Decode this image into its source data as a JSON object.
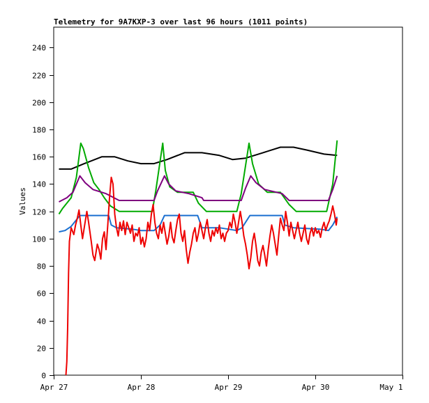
{
  "chart_data": {
    "type": "line",
    "title": "Telemetry for 9A7KXP-3 over last 96 hours (1011 points)",
    "xlabel": "",
    "ylabel": "Values",
    "x_unit": "days",
    "xlim": [
      0,
      4
    ],
    "ylim": [
      0,
      255
    ],
    "x_ticks": [
      {
        "x": 0,
        "label": "Apr 27"
      },
      {
        "x": 1,
        "label": "Apr 28"
      },
      {
        "x": 2,
        "label": "Apr 29"
      },
      {
        "x": 3,
        "label": "Apr 30"
      },
      {
        "x": 4,
        "label": "May 1"
      }
    ],
    "y_ticks": [
      0,
      20,
      40,
      60,
      80,
      100,
      120,
      140,
      160,
      180,
      200,
      220,
      240
    ],
    "grid": false,
    "legend": "none",
    "series": [
      {
        "color": "#000000",
        "points": [
          [
            0.06,
            151
          ],
          [
            0.2,
            151
          ],
          [
            0.35,
            155
          ],
          [
            0.55,
            160
          ],
          [
            0.7,
            160
          ],
          [
            0.85,
            157
          ],
          [
            1.0,
            155
          ],
          [
            1.15,
            155
          ],
          [
            1.3,
            158
          ],
          [
            1.5,
            163
          ],
          [
            1.7,
            163
          ],
          [
            1.9,
            161
          ],
          [
            2.05,
            158
          ],
          [
            2.2,
            159
          ],
          [
            2.4,
            163
          ],
          [
            2.6,
            167
          ],
          [
            2.75,
            167
          ],
          [
            2.9,
            165
          ],
          [
            3.1,
            162
          ],
          [
            3.25,
            161
          ]
        ]
      },
      {
        "color": "#00aa00",
        "points": [
          [
            0.06,
            118
          ],
          [
            0.1,
            122
          ],
          [
            0.2,
            130
          ],
          [
            0.26,
            145
          ],
          [
            0.31,
            170
          ],
          [
            0.34,
            166
          ],
          [
            0.4,
            152
          ],
          [
            0.46,
            141
          ],
          [
            0.52,
            136
          ],
          [
            0.58,
            130
          ],
          [
            0.65,
            124
          ],
          [
            0.75,
            120
          ],
          [
            0.9,
            120
          ],
          [
            1.13,
            120
          ],
          [
            1.17,
            135
          ],
          [
            1.25,
            170
          ],
          [
            1.28,
            150
          ],
          [
            1.33,
            138
          ],
          [
            1.42,
            134
          ],
          [
            1.6,
            134
          ],
          [
            1.66,
            126
          ],
          [
            1.75,
            120
          ],
          [
            2.1,
            120
          ],
          [
            2.15,
            133
          ],
          [
            2.24,
            170
          ],
          [
            2.28,
            155
          ],
          [
            2.35,
            140
          ],
          [
            2.45,
            134
          ],
          [
            2.6,
            134
          ],
          [
            2.7,
            125
          ],
          [
            2.78,
            120
          ],
          [
            3.13,
            120
          ],
          [
            3.2,
            140
          ],
          [
            3.25,
            172
          ]
        ]
      },
      {
        "color": "#7f007f",
        "points": [
          [
            0.06,
            127
          ],
          [
            0.15,
            130
          ],
          [
            0.22,
            134
          ],
          [
            0.3,
            146
          ],
          [
            0.36,
            141
          ],
          [
            0.45,
            136
          ],
          [
            0.6,
            133
          ],
          [
            0.75,
            128
          ],
          [
            1.15,
            128
          ],
          [
            1.19,
            135
          ],
          [
            1.27,
            146
          ],
          [
            1.32,
            140
          ],
          [
            1.4,
            135
          ],
          [
            1.55,
            133
          ],
          [
            1.7,
            130
          ],
          [
            1.72,
            128
          ],
          [
            2.15,
            128
          ],
          [
            2.2,
            137
          ],
          [
            2.26,
            146
          ],
          [
            2.32,
            141
          ],
          [
            2.42,
            136
          ],
          [
            2.62,
            133
          ],
          [
            2.7,
            128
          ],
          [
            3.15,
            128
          ],
          [
            3.2,
            136
          ],
          [
            3.25,
            146
          ]
        ]
      },
      {
        "color": "#1a6fd0",
        "points": [
          [
            0.06,
            105
          ],
          [
            0.13,
            106
          ],
          [
            0.2,
            109
          ],
          [
            0.3,
            117
          ],
          [
            0.63,
            117
          ],
          [
            0.66,
            110
          ],
          [
            0.72,
            108
          ],
          [
            0.9,
            107
          ],
          [
            1.0,
            106
          ],
          [
            1.15,
            106
          ],
          [
            1.22,
            110
          ],
          [
            1.27,
            117
          ],
          [
            1.65,
            117
          ],
          [
            1.7,
            108
          ],
          [
            1.9,
            108
          ],
          [
            2.1,
            106
          ],
          [
            2.16,
            108
          ],
          [
            2.25,
            117
          ],
          [
            2.62,
            117
          ],
          [
            2.65,
            110
          ],
          [
            2.75,
            108
          ],
          [
            3.05,
            107
          ],
          [
            3.15,
            106
          ],
          [
            3.2,
            110
          ],
          [
            3.25,
            116
          ]
        ]
      },
      {
        "color": "#ee0000",
        "points": [
          [
            0.14,
            0
          ],
          [
            0.15,
            10
          ],
          [
            0.16,
            35
          ],
          [
            0.17,
            75
          ],
          [
            0.18,
            98
          ],
          [
            0.2,
            108
          ],
          [
            0.23,
            103
          ],
          [
            0.25,
            110
          ],
          [
            0.27,
            115
          ],
          [
            0.29,
            121
          ],
          [
            0.31,
            110
          ],
          [
            0.33,
            100
          ],
          [
            0.36,
            112
          ],
          [
            0.38,
            120
          ],
          [
            0.4,
            112
          ],
          [
            0.43,
            98
          ],
          [
            0.45,
            88
          ],
          [
            0.47,
            84
          ],
          [
            0.5,
            96
          ],
          [
            0.52,
            92
          ],
          [
            0.54,
            85
          ],
          [
            0.56,
            100
          ],
          [
            0.58,
            105
          ],
          [
            0.6,
            92
          ],
          [
            0.62,
            110
          ],
          [
            0.64,
            130
          ],
          [
            0.66,
            145
          ],
          [
            0.68,
            140
          ],
          [
            0.7,
            118
          ],
          [
            0.72,
            108
          ],
          [
            0.74,
            102
          ],
          [
            0.76,
            112
          ],
          [
            0.78,
            106
          ],
          [
            0.8,
            113
          ],
          [
            0.82,
            103
          ],
          [
            0.84,
            112
          ],
          [
            0.86,
            108
          ],
          [
            0.88,
            104
          ],
          [
            0.9,
            110
          ],
          [
            0.92,
            98
          ],
          [
            0.94,
            104
          ],
          [
            0.96,
            102
          ],
          [
            0.98,
            108
          ],
          [
            1.0,
            96
          ],
          [
            1.02,
            101
          ],
          [
            1.04,
            94
          ],
          [
            1.06,
            100
          ],
          [
            1.08,
            112
          ],
          [
            1.1,
            106
          ],
          [
            1.12,
            118
          ],
          [
            1.14,
            125
          ],
          [
            1.16,
            112
          ],
          [
            1.18,
            104
          ],
          [
            1.2,
            100
          ],
          [
            1.22,
            110
          ],
          [
            1.24,
            104
          ],
          [
            1.26,
            112
          ],
          [
            1.28,
            104
          ],
          [
            1.3,
            96
          ],
          [
            1.32,
            102
          ],
          [
            1.34,
            112
          ],
          [
            1.36,
            101
          ],
          [
            1.38,
            97
          ],
          [
            1.4,
            106
          ],
          [
            1.42,
            114
          ],
          [
            1.44,
            118
          ],
          [
            1.46,
            104
          ],
          [
            1.48,
            98
          ],
          [
            1.5,
            106
          ],
          [
            1.52,
            92
          ],
          [
            1.54,
            82
          ],
          [
            1.56,
            90
          ],
          [
            1.58,
            96
          ],
          [
            1.6,
            104
          ],
          [
            1.62,
            108
          ],
          [
            1.64,
            98
          ],
          [
            1.66,
            104
          ],
          [
            1.68,
            112
          ],
          [
            1.7,
            106
          ],
          [
            1.72,
            100
          ],
          [
            1.74,
            108
          ],
          [
            1.76,
            114
          ],
          [
            1.78,
            104
          ],
          [
            1.8,
            98
          ],
          [
            1.82,
            106
          ],
          [
            1.84,
            102
          ],
          [
            1.86,
            108
          ],
          [
            1.88,
            104
          ],
          [
            1.9,
            110
          ],
          [
            1.92,
            100
          ],
          [
            1.94,
            104
          ],
          [
            1.96,
            98
          ],
          [
            1.98,
            104
          ],
          [
            2.0,
            106
          ],
          [
            2.02,
            112
          ],
          [
            2.04,
            108
          ],
          [
            2.06,
            118
          ],
          [
            2.08,
            112
          ],
          [
            2.1,
            104
          ],
          [
            2.12,
            112
          ],
          [
            2.14,
            120
          ],
          [
            2.16,
            112
          ],
          [
            2.18,
            102
          ],
          [
            2.2,
            96
          ],
          [
            2.22,
            88
          ],
          [
            2.24,
            78
          ],
          [
            2.26,
            86
          ],
          [
            2.28,
            98
          ],
          [
            2.3,
            104
          ],
          [
            2.32,
            95
          ],
          [
            2.34,
            84
          ],
          [
            2.36,
            80
          ],
          [
            2.38,
            90
          ],
          [
            2.4,
            95
          ],
          [
            2.42,
            88
          ],
          [
            2.44,
            80
          ],
          [
            2.46,
            92
          ],
          [
            2.48,
            102
          ],
          [
            2.5,
            110
          ],
          [
            2.52,
            104
          ],
          [
            2.54,
            96
          ],
          [
            2.56,
            88
          ],
          [
            2.58,
            102
          ],
          [
            2.6,
            115
          ],
          [
            2.62,
            110
          ],
          [
            2.64,
            106
          ],
          [
            2.66,
            120
          ],
          [
            2.68,
            112
          ],
          [
            2.7,
            102
          ],
          [
            2.72,
            112
          ],
          [
            2.74,
            106
          ],
          [
            2.76,
            100
          ],
          [
            2.78,
            106
          ],
          [
            2.8,
            112
          ],
          [
            2.82,
            104
          ],
          [
            2.84,
            98
          ],
          [
            2.86,
            104
          ],
          [
            2.88,
            110
          ],
          [
            2.9,
            100
          ],
          [
            2.92,
            96
          ],
          [
            2.94,
            104
          ],
          [
            2.96,
            108
          ],
          [
            2.98,
            102
          ],
          [
            3.0,
            108
          ],
          [
            3.02,
            104
          ],
          [
            3.04,
            106
          ],
          [
            3.06,
            101
          ],
          [
            3.08,
            108
          ],
          [
            3.1,
            112
          ],
          [
            3.12,
            106
          ],
          [
            3.14,
            110
          ],
          [
            3.16,
            113
          ],
          [
            3.18,
            118
          ],
          [
            3.2,
            124
          ],
          [
            3.22,
            118
          ],
          [
            3.24,
            110
          ],
          [
            3.25,
            115
          ]
        ]
      }
    ]
  }
}
